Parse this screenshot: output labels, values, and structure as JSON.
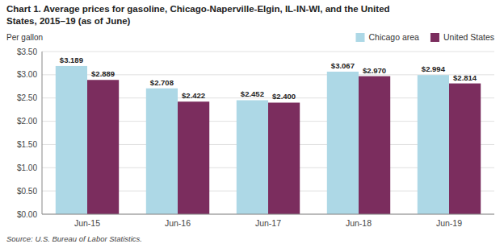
{
  "chart_data": {
    "type": "bar",
    "title": "Chart 1. Average prices for gasoline, Chicago-Naperville-Elgin, IL-IN-WI, and the United\nStates, 2015–19  (as of June)",
    "y_label": "Per gallon",
    "source": "Source: U.S. Bureau of Labor Statistics.",
    "categories": [
      "Jun-15",
      "Jun-16",
      "Jun-17",
      "Jun-18",
      "Jun-19"
    ],
    "series": [
      {
        "name": "Chicago area",
        "color": "#ADD8E6",
        "values": [
          3.189,
          2.708,
          2.452,
          3.067,
          2.994
        ],
        "value_labels": [
          "$3.189",
          "$2.708",
          "$2.452",
          "$3.067",
          "$2.994"
        ]
      },
      {
        "name": "United States",
        "color": "#7B2D5E",
        "values": [
          2.889,
          2.422,
          2.4,
          2.97,
          2.814
        ],
        "value_labels": [
          "$2.889",
          "$2.422",
          "$2.400",
          "$2.970",
          "$2.814"
        ]
      }
    ],
    "ylim": [
      0,
      3.5
    ],
    "yticks": [
      {
        "value": 0.0,
        "label": "$0.00"
      },
      {
        "value": 0.5,
        "label": "$0.50"
      },
      {
        "value": 1.0,
        "label": "$1.00"
      },
      {
        "value": 1.5,
        "label": "$1.50"
      },
      {
        "value": 2.0,
        "label": "$2.00"
      },
      {
        "value": 2.5,
        "label": "$2.50"
      },
      {
        "value": 3.0,
        "label": "$3.00"
      },
      {
        "value": 3.5,
        "label": "$3.50"
      }
    ],
    "grid": true,
    "legend": "top-right",
    "data_labels": true
  }
}
